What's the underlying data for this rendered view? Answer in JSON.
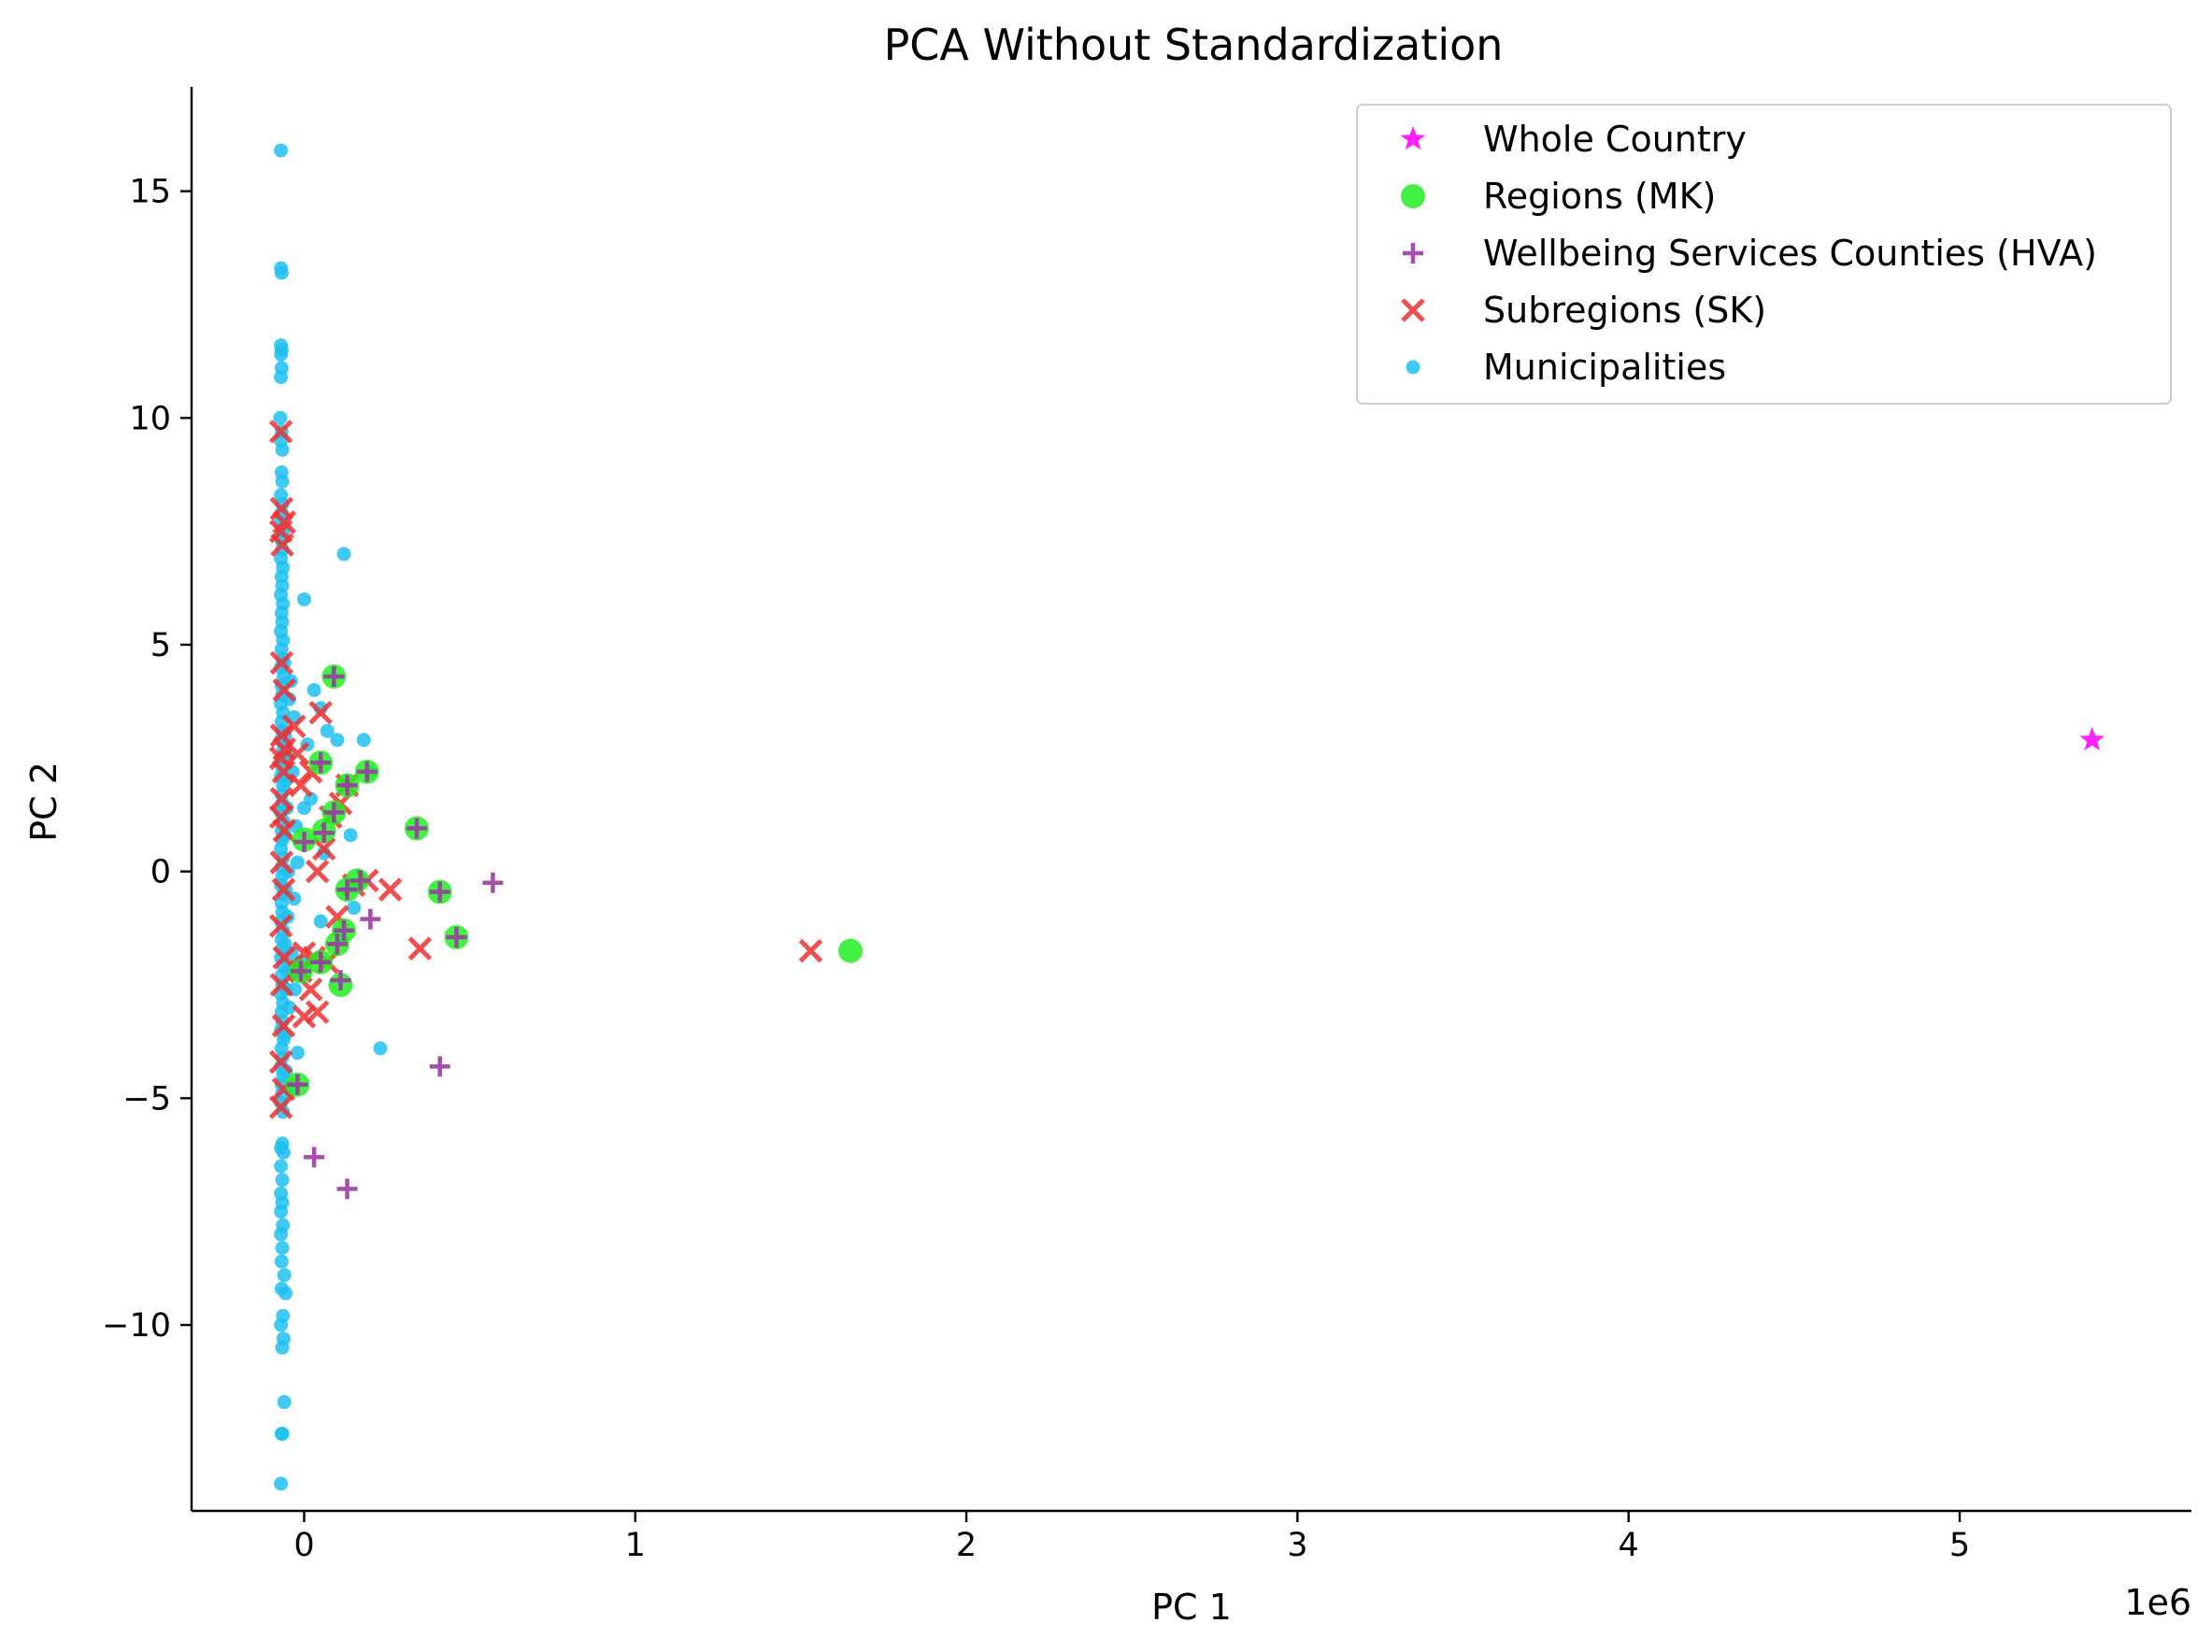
{
  "chart_data": {
    "type": "scatter",
    "title": "PCA Without Standardization",
    "xlabel": "PC 1",
    "ylabel": "PC 2",
    "x_offset_label": "1e6",
    "xlim": [
      -340000,
      5700000
    ],
    "ylim": [
      -14.1,
      17.3
    ],
    "x_ticks": [
      {
        "value": 0,
        "label": "0"
      },
      {
        "value": 1000000,
        "label": "1"
      },
      {
        "value": 2000000,
        "label": "2"
      },
      {
        "value": 3000000,
        "label": "3"
      },
      {
        "value": 4000000,
        "label": "4"
      },
      {
        "value": 5000000,
        "label": "5"
      }
    ],
    "y_ticks": [
      {
        "value": -10,
        "label": "−10"
      },
      {
        "value": -5,
        "label": "−5"
      },
      {
        "value": 0,
        "label": "0"
      },
      {
        "value": 5,
        "label": "5"
      },
      {
        "value": 10,
        "label": "10"
      },
      {
        "value": 15,
        "label": "15"
      }
    ],
    "grid": false,
    "legend_position": "top-right",
    "series": [
      {
        "name": "Municipalities",
        "marker": "circle-small",
        "color": "#1ec0f0",
        "points": [
          [
            -70000,
            15.9
          ],
          [
            -70000,
            13.3
          ],
          [
            -68000,
            13.2
          ],
          [
            -70000,
            11.6
          ],
          [
            -68000,
            11.5
          ],
          [
            -70000,
            11.4
          ],
          [
            -68000,
            11.1
          ],
          [
            -70000,
            10.9
          ],
          [
            -72000,
            10.0
          ],
          [
            -68000,
            9.7
          ],
          [
            -70000,
            9.5
          ],
          [
            -66000,
            9.3
          ],
          [
            -68000,
            8.8
          ],
          [
            -66000,
            8.6
          ],
          [
            -70000,
            8.3
          ],
          [
            -66000,
            8.1
          ],
          [
            -68000,
            7.9
          ],
          [
            -70000,
            7.7
          ],
          [
            -64000,
            7.5
          ],
          [
            -68000,
            7.3
          ],
          [
            -66000,
            7.1
          ],
          [
            -70000,
            6.9
          ],
          [
            -64000,
            6.7
          ],
          [
            -68000,
            6.5
          ],
          [
            -66000,
            6.3
          ],
          [
            -70000,
            6.1
          ],
          [
            -64000,
            5.9
          ],
          [
            -68000,
            5.7
          ],
          [
            -66000,
            5.5
          ],
          [
            -70000,
            5.3
          ],
          [
            -64000,
            5.1
          ],
          [
            -68000,
            4.9
          ],
          [
            -66000,
            4.7
          ],
          [
            -70000,
            4.5
          ],
          [
            -62000,
            4.3
          ],
          [
            -68000,
            4.1
          ],
          [
            -66000,
            3.9
          ],
          [
            -70000,
            3.7
          ],
          [
            -64000,
            3.5
          ],
          [
            -68000,
            3.3
          ],
          [
            -66000,
            3.1
          ],
          [
            -70000,
            2.9
          ],
          [
            -62000,
            2.7
          ],
          [
            -68000,
            2.5
          ],
          [
            -66000,
            2.3
          ],
          [
            -70000,
            2.1
          ],
          [
            -64000,
            1.9
          ],
          [
            -68000,
            1.7
          ],
          [
            -66000,
            1.5
          ],
          [
            -70000,
            1.3
          ],
          [
            -62000,
            1.1
          ],
          [
            -68000,
            0.9
          ],
          [
            -66000,
            0.7
          ],
          [
            -70000,
            0.5
          ],
          [
            -64000,
            0.3
          ],
          [
            -68000,
            0.1
          ],
          [
            -66000,
            -0.1
          ],
          [
            -70000,
            -0.3
          ],
          [
            -62000,
            -0.5
          ],
          [
            -68000,
            -0.7
          ],
          [
            -66000,
            -0.9
          ],
          [
            -70000,
            -1.1
          ],
          [
            -64000,
            -1.3
          ],
          [
            -68000,
            -1.5
          ],
          [
            -66000,
            -1.7
          ],
          [
            -70000,
            -1.9
          ],
          [
            -62000,
            -2.1
          ],
          [
            -68000,
            -2.3
          ],
          [
            -66000,
            -2.5
          ],
          [
            -70000,
            -2.7
          ],
          [
            -64000,
            -2.9
          ],
          [
            -68000,
            -3.1
          ],
          [
            -66000,
            -3.3
          ],
          [
            -70000,
            -3.5
          ],
          [
            -62000,
            -3.7
          ],
          [
            -68000,
            -3.9
          ],
          [
            -66000,
            -4.1
          ],
          [
            -70000,
            -4.3
          ],
          [
            -64000,
            -4.5
          ],
          [
            -68000,
            -4.7
          ],
          [
            -66000,
            -4.9
          ],
          [
            -70000,
            -5.1
          ],
          [
            -64000,
            -5.3
          ],
          [
            -60000,
            4.6
          ],
          [
            -58000,
            3.0
          ],
          [
            -56000,
            2.0
          ],
          [
            -58000,
            0.8
          ],
          [
            -56000,
            -0.4
          ],
          [
            -58000,
            -1.6
          ],
          [
            -56000,
            -2.6
          ],
          [
            -58000,
            -3.6
          ],
          [
            -55000,
            -4.4
          ],
          [
            -52000,
            1.4
          ],
          [
            -50000,
            -1.0
          ],
          [
            -52000,
            2.6
          ],
          [
            -50000,
            -2.2
          ],
          [
            -48000,
            0.0
          ],
          [
            -45000,
            3.8
          ],
          [
            -45000,
            -3.0
          ],
          [
            -40000,
            4.2
          ],
          [
            -38000,
            -1.8
          ],
          [
            -35000,
            2.2
          ],
          [
            -30000,
            -0.6
          ],
          [
            -25000,
            1.0
          ],
          [
            -20000,
            -4.0
          ],
          [
            -30000,
            3.4
          ],
          [
            -28000,
            -2.6
          ],
          [
            -70000,
            -6.1
          ],
          [
            -66000,
            -6.0
          ],
          [
            -62000,
            -6.2
          ],
          [
            -70000,
            -6.5
          ],
          [
            -66000,
            -6.8
          ],
          [
            -70000,
            -7.1
          ],
          [
            -66000,
            -7.3
          ],
          [
            -70000,
            -7.5
          ],
          [
            -64000,
            -7.8
          ],
          [
            -70000,
            -8.0
          ],
          [
            -66000,
            -8.3
          ],
          [
            -68000,
            -8.6
          ],
          [
            -60000,
            -8.9
          ],
          [
            -68000,
            -9.2
          ],
          [
            -56000,
            -9.3
          ],
          [
            -64000,
            -9.8
          ],
          [
            -70000,
            -10.0
          ],
          [
            -62000,
            -10.3
          ],
          [
            -66000,
            -10.5
          ],
          [
            -60000,
            -11.7
          ],
          [
            -68000,
            -12.4
          ],
          [
            -66000,
            -12.4
          ],
          [
            -70000,
            -13.5
          ],
          [
            0,
            6.0
          ],
          [
            30000,
            4.0
          ],
          [
            10000,
            2.8
          ],
          [
            50000,
            3.6
          ],
          [
            70000,
            3.1
          ],
          [
            100000,
            2.9
          ],
          [
            120000,
            7.0
          ],
          [
            140000,
            0.8
          ],
          [
            180000,
            2.9
          ],
          [
            200000,
            2.2
          ],
          [
            50000,
            -1.1
          ],
          [
            150000,
            -0.8
          ],
          [
            230000,
            -3.9
          ],
          [
            -40000,
            -4.8
          ],
          [
            -20000,
            0.2
          ],
          [
            20000,
            1.6
          ],
          [
            0,
            1.4
          ],
          [
            -10000,
            -2.0
          ],
          [
            60000,
            0.4
          ]
        ]
      },
      {
        "name": "Subregions (SK)",
        "marker": "x",
        "color": "#ee3030",
        "points": [
          [
            -70000,
            9.7
          ],
          [
            -68000,
            8.0
          ],
          [
            -60000,
            7.7
          ],
          [
            -70000,
            7.5
          ],
          [
            -66000,
            7.2
          ],
          [
            -68000,
            4.6
          ],
          [
            -60000,
            4.0
          ],
          [
            -68000,
            3.0
          ],
          [
            -60000,
            2.7
          ],
          [
            -70000,
            2.5
          ],
          [
            -62000,
            2.2
          ],
          [
            -68000,
            1.6
          ],
          [
            -70000,
            1.2
          ],
          [
            -60000,
            0.9
          ],
          [
            -68000,
            0.2
          ],
          [
            -62000,
            -0.4
          ],
          [
            -70000,
            -1.2
          ],
          [
            -60000,
            -1.9
          ],
          [
            -68000,
            -2.5
          ],
          [
            -62000,
            -3.4
          ],
          [
            -70000,
            -4.2
          ],
          [
            -62000,
            -4.8
          ],
          [
            -70000,
            -5.2
          ],
          [
            -30000,
            3.2
          ],
          [
            -20000,
            2.6
          ],
          [
            -10000,
            1.9
          ],
          [
            -10000,
            -2.2
          ],
          [
            0,
            -3.2
          ],
          [
            20000,
            -2.6
          ],
          [
            0,
            -1.8
          ],
          [
            30000,
            -1.9
          ],
          [
            40000,
            -3.1
          ],
          [
            70000,
            -2.0
          ],
          [
            60000,
            0.5
          ],
          [
            50000,
            3.5
          ],
          [
            110000,
            1.5
          ],
          [
            130000,
            1.9
          ],
          [
            150000,
            -0.3
          ],
          [
            190000,
            -0.2
          ],
          [
            260000,
            -0.4
          ],
          [
            350000,
            -1.7
          ],
          [
            1530000,
            -1.75
          ],
          [
            80000,
            1.2
          ],
          [
            40000,
            0.0
          ],
          [
            100000,
            -1.0
          ],
          [
            20000,
            2.2
          ]
        ]
      },
      {
        "name": "Regions (MK)",
        "marker": "circle-large",
        "color": "#22ee22",
        "points": [
          [
            90000,
            4.3
          ],
          [
            50000,
            2.4
          ],
          [
            190000,
            2.2
          ],
          [
            130000,
            1.9
          ],
          [
            90000,
            1.3
          ],
          [
            60000,
            0.9
          ],
          [
            0,
            0.7
          ],
          [
            340000,
            0.95
          ],
          [
            160000,
            -0.2
          ],
          [
            130000,
            -0.4
          ],
          [
            410000,
            -0.45
          ],
          [
            120000,
            -1.3
          ],
          [
            460000,
            -1.45
          ],
          [
            100000,
            -1.6
          ],
          [
            50000,
            -2.0
          ],
          [
            110000,
            -2.5
          ],
          [
            -10000,
            -2.2
          ],
          [
            -20000,
            -4.7
          ],
          [
            1650000,
            -1.75
          ]
        ]
      },
      {
        "name": "Wellbeing Services Counties (HVA)",
        "marker": "plus",
        "color": "#9b3ba3",
        "points": [
          [
            90000,
            4.3
          ],
          [
            50000,
            2.4
          ],
          [
            190000,
            2.2
          ],
          [
            130000,
            1.9
          ],
          [
            90000,
            1.3
          ],
          [
            60000,
            0.85
          ],
          [
            0,
            0.65
          ],
          [
            340000,
            0.95
          ],
          [
            170000,
            -0.2
          ],
          [
            130000,
            -0.4
          ],
          [
            410000,
            -0.45
          ],
          [
            120000,
            -1.3
          ],
          [
            460000,
            -1.45
          ],
          [
            100000,
            -1.6
          ],
          [
            50000,
            -2.0
          ],
          [
            110000,
            -2.4
          ],
          [
            -10000,
            -2.2
          ],
          [
            570000,
            -0.25
          ],
          [
            200000,
            -1.05
          ],
          [
            410000,
            -4.3
          ],
          [
            30000,
            -6.3
          ],
          [
            130000,
            -7.0
          ],
          [
            -20000,
            -4.7
          ]
        ]
      },
      {
        "name": "Whole Country",
        "marker": "star",
        "color": "#ff22ff",
        "points": [
          [
            5400000,
            2.9
          ]
        ]
      }
    ],
    "legend": [
      {
        "label": "Whole Country",
        "marker": "star",
        "color": "#ff22ff"
      },
      {
        "label": "Regions (MK)",
        "marker": "circle-large",
        "color": "#22ee22"
      },
      {
        "label": "Wellbeing Services Counties (HVA)",
        "marker": "plus",
        "color": "#9b3ba3"
      },
      {
        "label": "Subregions (SK)",
        "marker": "x",
        "color": "#ee3030"
      },
      {
        "label": "Municipalities",
        "marker": "circle-small",
        "color": "#1ec0f0"
      }
    ]
  }
}
